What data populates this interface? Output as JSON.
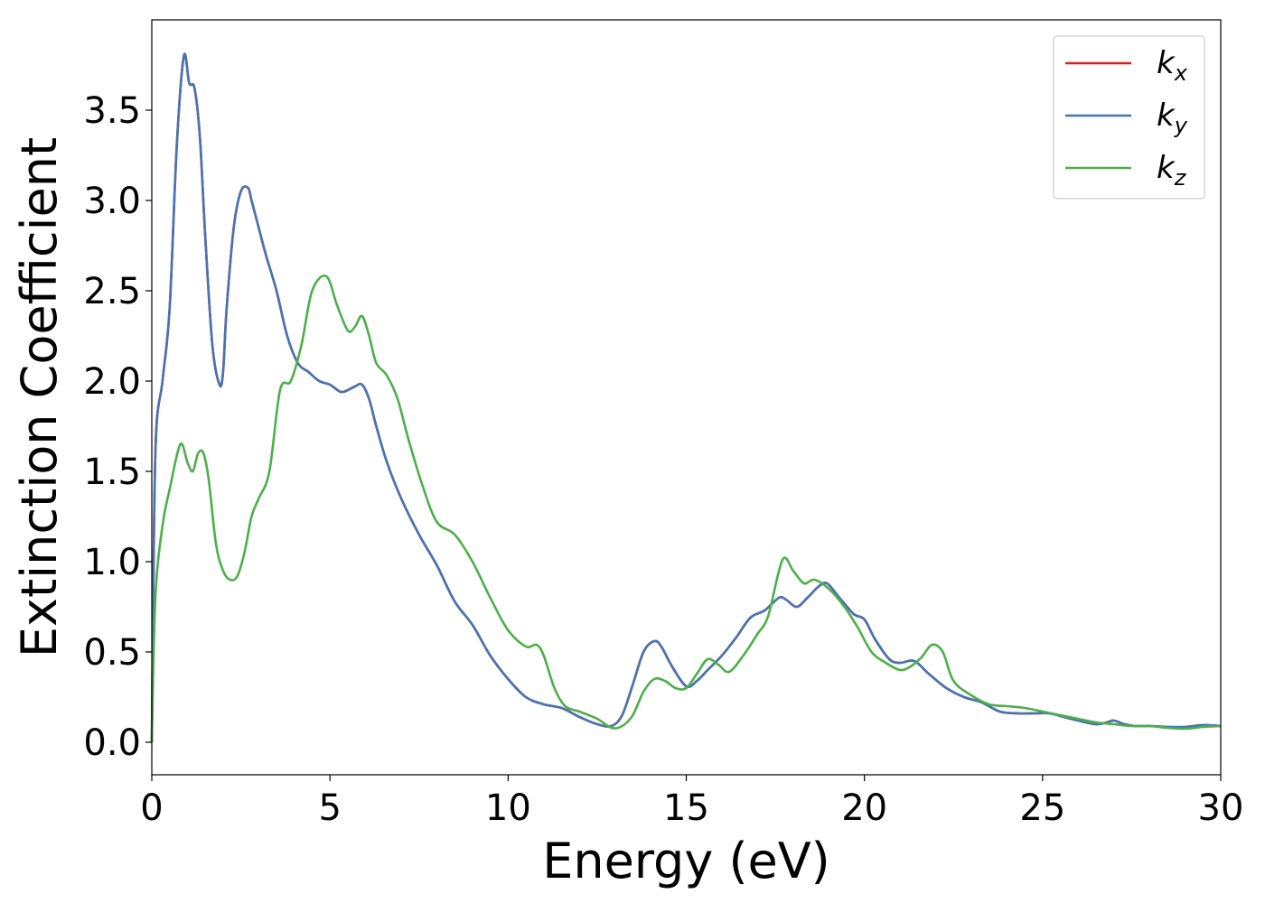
{
  "chart_data": {
    "type": "line",
    "title": "",
    "xlabel": "Energy (eV)",
    "ylabel": "Extinction Coefficient",
    "xlim": [
      0,
      30
    ],
    "ylim": [
      -0.18,
      4.0
    ],
    "xticks": [
      0,
      5,
      10,
      15,
      20,
      25,
      30
    ],
    "xtick_labels": [
      "0",
      "5",
      "10",
      "15",
      "20",
      "25",
      "30"
    ],
    "yticks": [
      0.0,
      0.5,
      1.0,
      1.5,
      2.0,
      2.5,
      3.0,
      3.5
    ],
    "ytick_labels": [
      "0.0",
      "0.5",
      "1.0",
      "1.5",
      "2.0",
      "2.5",
      "3.0",
      "3.5"
    ],
    "grid": false,
    "legend_position": "top-right",
    "series": [
      {
        "name": "k_x",
        "legend_base": "k",
        "legend_sub": "x",
        "color": "#e41a1c",
        "x": [
          0,
          0.1,
          0.3,
          0.5,
          0.7,
          0.9,
          1.05,
          1.2,
          1.35,
          1.5,
          1.7,
          1.9,
          2.0,
          2.1,
          2.3,
          2.5,
          2.7,
          2.8,
          3.0,
          3.2,
          3.5,
          3.8,
          4.1,
          4.4,
          4.7,
          5.0,
          5.3,
          5.5,
          5.7,
          5.9,
          6.1,
          6.3,
          6.6,
          7.0,
          7.5,
          8.0,
          8.5,
          9.0,
          9.5,
          10.0,
          10.5,
          11.0,
          11.5,
          12.0,
          12.5,
          12.9,
          13.2,
          13.5,
          13.8,
          14.1,
          14.3,
          14.6,
          15.0,
          15.3,
          15.6,
          16.0,
          16.4,
          16.8,
          17.2,
          17.6,
          17.8,
          18.1,
          18.4,
          18.7,
          18.95,
          19.3,
          19.7,
          20.0,
          20.3,
          20.7,
          21.0,
          21.4,
          21.8,
          22.3,
          22.8,
          23.3,
          23.8,
          24.3,
          24.8,
          25.2,
          25.6,
          26.0,
          26.5,
          26.8,
          27.0,
          27.3,
          27.6,
          28.0,
          28.5,
          29.0,
          29.5,
          30.0
        ],
        "y": [
          0.0,
          1.6,
          2.0,
          2.4,
          3.3,
          3.8,
          3.65,
          3.62,
          3.35,
          2.8,
          2.2,
          1.98,
          2.05,
          2.4,
          2.85,
          3.05,
          3.07,
          3.0,
          2.85,
          2.7,
          2.5,
          2.25,
          2.1,
          2.05,
          2.0,
          1.98,
          1.94,
          1.95,
          1.97,
          1.98,
          1.9,
          1.75,
          1.55,
          1.35,
          1.15,
          0.98,
          0.78,
          0.65,
          0.48,
          0.35,
          0.25,
          0.21,
          0.19,
          0.14,
          0.1,
          0.09,
          0.15,
          0.32,
          0.5,
          0.56,
          0.53,
          0.42,
          0.31,
          0.34,
          0.4,
          0.48,
          0.58,
          0.69,
          0.73,
          0.8,
          0.79,
          0.75,
          0.8,
          0.86,
          0.88,
          0.8,
          0.71,
          0.68,
          0.57,
          0.46,
          0.44,
          0.45,
          0.38,
          0.3,
          0.25,
          0.22,
          0.17,
          0.16,
          0.16,
          0.16,
          0.14,
          0.12,
          0.1,
          0.11,
          0.12,
          0.1,
          0.09,
          0.09,
          0.085,
          0.085,
          0.095,
          0.09
        ]
      },
      {
        "name": "k_y",
        "legend_base": "k",
        "legend_sub": "y",
        "color": "#4575b4",
        "x": [
          0,
          0.1,
          0.3,
          0.5,
          0.7,
          0.9,
          1.05,
          1.2,
          1.35,
          1.5,
          1.7,
          1.9,
          2.0,
          2.1,
          2.3,
          2.5,
          2.7,
          2.8,
          3.0,
          3.2,
          3.5,
          3.8,
          4.1,
          4.4,
          4.7,
          5.0,
          5.3,
          5.5,
          5.7,
          5.9,
          6.1,
          6.3,
          6.6,
          7.0,
          7.5,
          8.0,
          8.5,
          9.0,
          9.5,
          10.0,
          10.5,
          11.0,
          11.5,
          12.0,
          12.5,
          12.9,
          13.2,
          13.5,
          13.8,
          14.1,
          14.3,
          14.6,
          15.0,
          15.3,
          15.6,
          16.0,
          16.4,
          16.8,
          17.2,
          17.6,
          17.8,
          18.1,
          18.4,
          18.7,
          18.95,
          19.3,
          19.7,
          20.0,
          20.3,
          20.7,
          21.0,
          21.4,
          21.8,
          22.3,
          22.8,
          23.3,
          23.8,
          24.3,
          24.8,
          25.2,
          25.6,
          26.0,
          26.5,
          26.8,
          27.0,
          27.3,
          27.6,
          28.0,
          28.5,
          29.0,
          29.5,
          30.0
        ],
        "y": [
          0.0,
          1.6,
          2.0,
          2.4,
          3.3,
          3.8,
          3.65,
          3.62,
          3.35,
          2.8,
          2.2,
          1.98,
          2.05,
          2.4,
          2.85,
          3.05,
          3.07,
          3.0,
          2.85,
          2.7,
          2.5,
          2.25,
          2.1,
          2.05,
          2.0,
          1.98,
          1.94,
          1.95,
          1.97,
          1.98,
          1.9,
          1.75,
          1.55,
          1.35,
          1.15,
          0.98,
          0.78,
          0.65,
          0.48,
          0.35,
          0.25,
          0.21,
          0.19,
          0.14,
          0.1,
          0.09,
          0.15,
          0.32,
          0.5,
          0.56,
          0.53,
          0.42,
          0.31,
          0.34,
          0.4,
          0.48,
          0.58,
          0.69,
          0.73,
          0.8,
          0.79,
          0.75,
          0.8,
          0.86,
          0.88,
          0.8,
          0.71,
          0.68,
          0.57,
          0.46,
          0.44,
          0.45,
          0.38,
          0.3,
          0.25,
          0.22,
          0.17,
          0.16,
          0.16,
          0.16,
          0.14,
          0.12,
          0.1,
          0.11,
          0.12,
          0.1,
          0.09,
          0.09,
          0.085,
          0.085,
          0.095,
          0.09
        ]
      },
      {
        "name": "k_z",
        "legend_base": "k",
        "legend_sub": "z",
        "color": "#4daf4a",
        "x": [
          0,
          0.1,
          0.3,
          0.5,
          0.8,
          1.0,
          1.15,
          1.3,
          1.45,
          1.6,
          1.8,
          2.0,
          2.2,
          2.4,
          2.6,
          2.8,
          3.0,
          3.3,
          3.6,
          3.9,
          4.2,
          4.5,
          4.9,
          5.2,
          5.5,
          5.7,
          5.9,
          6.1,
          6.3,
          6.6,
          6.9,
          7.2,
          7.6,
          8.0,
          8.5,
          9.0,
          9.5,
          10.0,
          10.5,
          10.8,
          11.0,
          11.3,
          11.6,
          12.0,
          12.5,
          12.9,
          13.2,
          13.5,
          13.8,
          14.1,
          14.4,
          14.7,
          15.0,
          15.3,
          15.6,
          15.9,
          16.2,
          16.6,
          17.0,
          17.3,
          17.7,
          18.0,
          18.3,
          18.6,
          19.0,
          19.4,
          19.8,
          20.2,
          20.6,
          21.0,
          21.3,
          21.6,
          21.9,
          22.2,
          22.5,
          23.0,
          23.5,
          24.0,
          24.5,
          25.0,
          25.5,
          26.0,
          26.5,
          27.0,
          27.5,
          28.0,
          28.5,
          29.0,
          29.5,
          30.0
        ],
        "y": [
          0.0,
          0.8,
          1.2,
          1.4,
          1.65,
          1.55,
          1.5,
          1.6,
          1.6,
          1.45,
          1.1,
          0.95,
          0.9,
          0.92,
          1.05,
          1.25,
          1.35,
          1.5,
          1.95,
          2.0,
          2.2,
          2.5,
          2.58,
          2.42,
          2.28,
          2.3,
          2.36,
          2.25,
          2.1,
          2.03,
          1.9,
          1.68,
          1.42,
          1.22,
          1.15,
          1.0,
          0.8,
          0.62,
          0.53,
          0.54,
          0.48,
          0.3,
          0.2,
          0.17,
          0.13,
          0.08,
          0.09,
          0.15,
          0.28,
          0.35,
          0.34,
          0.3,
          0.3,
          0.38,
          0.46,
          0.43,
          0.39,
          0.48,
          0.6,
          0.7,
          1.01,
          0.95,
          0.88,
          0.9,
          0.85,
          0.76,
          0.64,
          0.5,
          0.44,
          0.4,
          0.42,
          0.47,
          0.54,
          0.5,
          0.34,
          0.26,
          0.21,
          0.2,
          0.19,
          0.17,
          0.15,
          0.13,
          0.11,
          0.1,
          0.09,
          0.09,
          0.08,
          0.075,
          0.085,
          0.09
        ]
      }
    ]
  }
}
